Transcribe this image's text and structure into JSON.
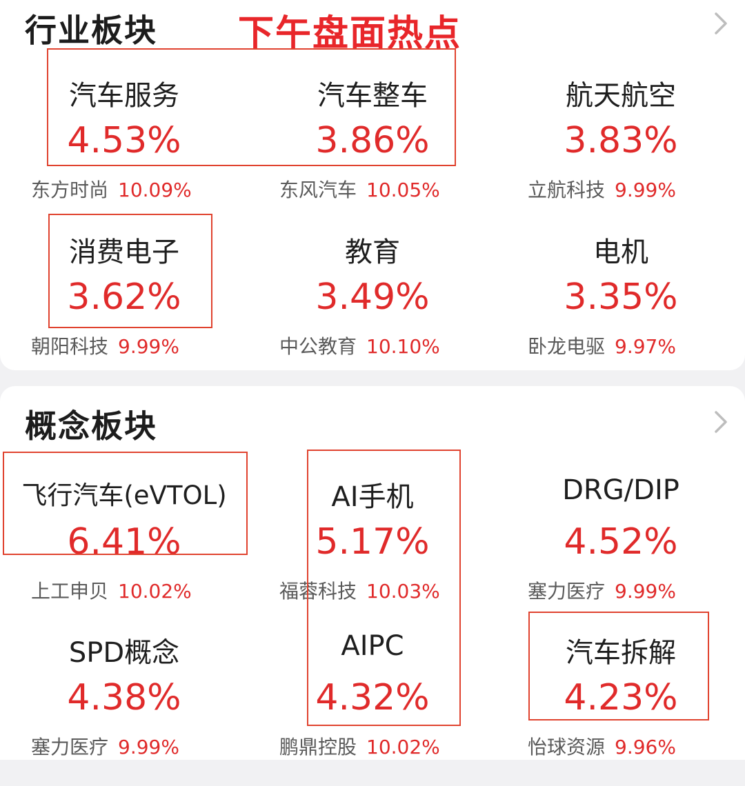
{
  "industry": {
    "title": "行业板块",
    "annotation": "下午盘面热点",
    "items": [
      {
        "name": "汽车服务",
        "change": "4.53%",
        "stock": "东方时尚",
        "stock_change": "10.09%"
      },
      {
        "name": "汽车整车",
        "change": "3.86%",
        "stock": "东风汽车",
        "stock_change": "10.05%"
      },
      {
        "name": "航天航空",
        "change": "3.83%",
        "stock": "立航科技",
        "stock_change": "9.99%"
      },
      {
        "name": "消费电子",
        "change": "3.62%",
        "stock": "朝阳科技",
        "stock_change": "9.99%"
      },
      {
        "name": "教育",
        "change": "3.49%",
        "stock": "中公教育",
        "stock_change": "10.10%"
      },
      {
        "name": "电机",
        "change": "3.35%",
        "stock": "卧龙电驱",
        "stock_change": "9.97%"
      }
    ]
  },
  "concept": {
    "title": "概念板块",
    "items": [
      {
        "name": "飞行汽车(eVTOL)",
        "change": "6.41%",
        "stock": "上工申贝",
        "stock_change": "10.02%"
      },
      {
        "name": "AI手机",
        "change": "5.17%",
        "stock": "福蓉科技",
        "stock_change": "10.03%"
      },
      {
        "name": "DRG/DIP",
        "change": "4.52%",
        "stock": "塞力医疗",
        "stock_change": "9.99%"
      },
      {
        "name": "SPD概念",
        "change": "4.38%",
        "stock": "塞力医疗",
        "stock_change": "9.99%"
      },
      {
        "name": "AIPC",
        "change": "4.32%",
        "stock": "鹏鼎控股",
        "stock_change": "10.02%"
      },
      {
        "name": "汽车拆解",
        "change": "4.23%",
        "stock": "怡球资源",
        "stock_change": "9.96%"
      }
    ]
  },
  "icons": {
    "more": "chevron-right-icon"
  },
  "colors": {
    "up": "#e02a2a",
    "annotation": "#e8262a",
    "highlight_box": "#e0422e"
  }
}
